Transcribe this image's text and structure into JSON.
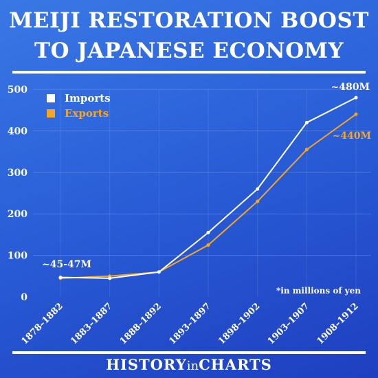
{
  "title_line1": "MEIJI RESTORATION BOOST",
  "title_line2": "TO JAPANESE ECONOMY",
  "note": "*in millions of yen",
  "footer": {
    "part1": "HISTORY",
    "part2": "in",
    "part3": "CHARTS"
  },
  "colors": {
    "imports": "#ffffff",
    "exports": "#f5a623"
  },
  "chart_data": {
    "type": "line",
    "categories": [
      "1878–1882",
      "1883–1887",
      "1888–1892",
      "1893–1897",
      "1898–1902",
      "1903–1907",
      "1908–1912"
    ],
    "series": [
      {
        "name": "Imports",
        "values": [
          47,
          45,
          60,
          155,
          260,
          420,
          480
        ]
      },
      {
        "name": "Exports",
        "values": [
          45,
          50,
          60,
          125,
          230,
          355,
          440
        ]
      }
    ],
    "ylim": [
      0,
      500
    ],
    "yticks": [
      0,
      100,
      200,
      300,
      400,
      500
    ],
    "grid": true,
    "legend": "top-left",
    "annotations": {
      "start": "~45-47M",
      "imports_end": "~480M",
      "exports_end": "~440M"
    }
  }
}
